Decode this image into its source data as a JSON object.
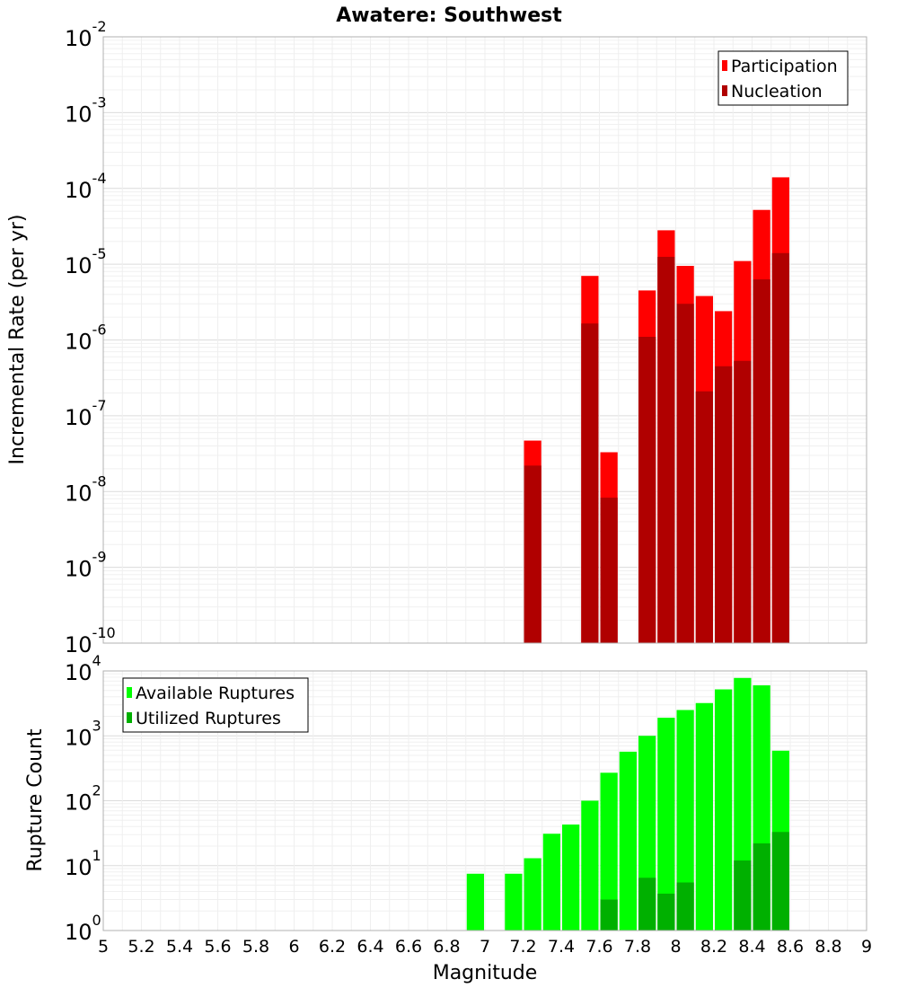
{
  "title": "Awatere: Southwest",
  "xlabel": "Magnitude",
  "x_ticks": [
    "5",
    "5.2",
    "5.4",
    "5.6",
    "5.8",
    "6",
    "6.2",
    "6.4",
    "6.6",
    "6.8",
    "7",
    "7.2",
    "7.4",
    "7.6",
    "7.8",
    "8",
    "8.2",
    "8.4",
    "8.6",
    "8.8",
    "9"
  ],
  "colors": {
    "participation": "#ff0000",
    "nucleation": "#b00000",
    "available": "#00ff00",
    "utilized": "#00b000",
    "grid": "#e8e8e8",
    "frame": "#b0b0b0"
  },
  "chart_data": [
    {
      "type": "bar",
      "scale": "log",
      "ylabel": "Incremental Rate (per yr)",
      "xlim": [
        5,
        9
      ],
      "ylim_exp": [
        -10,
        -2
      ],
      "y_tick_exponents": [
        "-10",
        "-9",
        "-8",
        "-7",
        "-6",
        "-5",
        "-4",
        "-3",
        "-2"
      ],
      "legend": [
        "Participation",
        "Nucleation"
      ],
      "legend_position": "top-right",
      "x": [
        7.25,
        7.55,
        7.65,
        7.85,
        7.95,
        8.05,
        8.15,
        8.25,
        8.35,
        8.45,
        8.55
      ],
      "series": [
        {
          "name": "Participation",
          "values": [
            4.7e-08,
            7e-06,
            3.3e-08,
            4.5e-06,
            2.8e-05,
            9.5e-06,
            3.8e-06,
            2.4e-06,
            1.1e-05,
            5.2e-05,
            0.00014
          ]
        },
        {
          "name": "Nucleation",
          "values": [
            2.2e-08,
            1.65e-06,
            8.3e-09,
            1.1e-06,
            1.25e-05,
            3e-06,
            2.1e-07,
            4.5e-07,
            5.3e-07,
            6.3e-06,
            1.4e-05
          ]
        }
      ]
    },
    {
      "type": "bar",
      "scale": "log",
      "ylabel": "Rupture Count",
      "xlim": [
        5,
        9
      ],
      "ylim_exp": [
        0,
        4
      ],
      "y_tick_exponents": [
        "0",
        "1",
        "2",
        "3",
        "4"
      ],
      "legend": [
        "Available Ruptures",
        "Utilized Ruptures"
      ],
      "legend_position": "top-left",
      "x": [
        6.95,
        7.15,
        7.25,
        7.35,
        7.45,
        7.55,
        7.65,
        7.75,
        7.85,
        7.95,
        8.05,
        8.15,
        8.25,
        8.35,
        8.45,
        8.55
      ],
      "series": [
        {
          "name": "Available Ruptures",
          "values": [
            7.5,
            7.5,
            13,
            31,
            43,
            100,
            270,
            570,
            1000,
            1900,
            2500,
            3200,
            5200,
            7800,
            6000,
            590
          ]
        },
        {
          "name": "Utilized Ruptures",
          "values": [
            0,
            0,
            1,
            0,
            0,
            1,
            3,
            0,
            6.5,
            3.7,
            5.5,
            1,
            1,
            12,
            22,
            33
          ]
        }
      ]
    }
  ]
}
